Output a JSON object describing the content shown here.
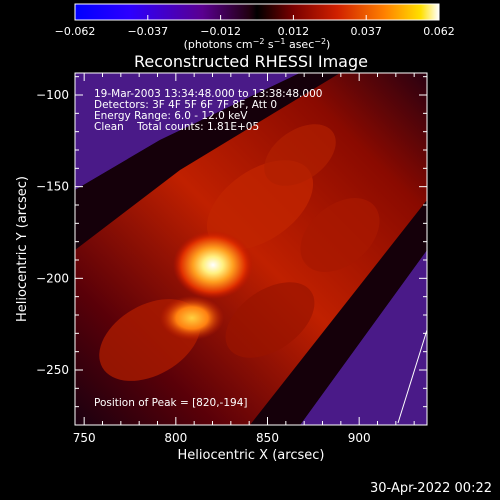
{
  "colors": {
    "background": "#000000",
    "foreground": "#ffffff"
  },
  "colorbar": {
    "ticks": [
      "−0.062",
      "−0.037",
      "−0.012",
      "0.012",
      "0.037",
      "0.062"
    ],
    "units_prefix": "(photons cm",
    "units_sup1": "−2",
    "units_mid": " s",
    "units_sup2": "−1",
    "units_mid2": " asec",
    "units_sup3": "−2",
    "units_suffix": ")",
    "range": [
      -0.062,
      0.062
    ]
  },
  "chart_data": {
    "type": "heatmap",
    "title": "Reconstructed RHESSI Image",
    "xlabel": "Heliocentric X (arcsec)",
    "ylabel": "Heliocentric Y (arcsec)",
    "xlim": [
      745,
      937
    ],
    "ylim": [
      -280,
      -88
    ],
    "xticks": [
      750,
      800,
      850,
      900
    ],
    "xtick_labels": [
      "750",
      "800",
      "850",
      "900"
    ],
    "yticks": [
      -100,
      -150,
      -200,
      -250
    ],
    "ytick_labels": [
      "−100",
      "−150",
      "−200",
      "−250"
    ],
    "peak": [
      820,
      -194
    ],
    "info": {
      "time": "19-Mar-2003 13:34:48.000 to 13:38:48.000",
      "detectors": "Detectors: 3F 4F 5F 6F 7F 8F, Att 0",
      "energy": "Energy Range: 6.0 - 12.0 keV",
      "clean": "Clean    Total counts: 1.81E+05"
    },
    "peak_text": "Position of Peak = [820,-194]"
  },
  "footer": {
    "timestamp": "30-Apr-2022 00:22"
  }
}
